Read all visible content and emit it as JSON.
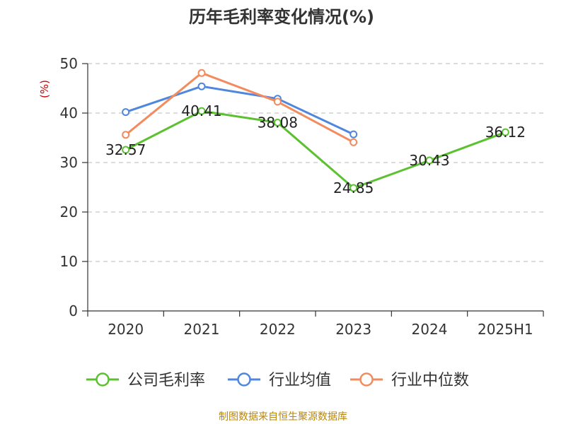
{
  "colors": {
    "company": "#5cc131",
    "industry_avg": "#4f86de",
    "industry_median": "#f28c5e",
    "unit": "#cc0000",
    "source": "#b8860b"
  },
  "chart_data": {
    "type": "line",
    "title": "历年毛利率变化情况(%)",
    "ylabel": "(%)",
    "xlabel": "",
    "categories": [
      "2020",
      "2021",
      "2022",
      "2023",
      "2024",
      "2025H1"
    ],
    "ylim": [
      0,
      50
    ],
    "yticks": [
      0,
      10,
      20,
      30,
      40,
      50
    ],
    "grid": true,
    "legend_position": "bottom",
    "series": [
      {
        "name": "公司毛利率",
        "color_key": "company",
        "values": [
          32.57,
          40.41,
          38.08,
          24.85,
          30.43,
          36.12
        ],
        "labels": [
          "32.57",
          "40.41",
          "38.08",
          "24.85",
          "30.43",
          "36.12"
        ]
      },
      {
        "name": "行业均值",
        "color_key": "industry_avg",
        "values": [
          40.2,
          45.4,
          42.9,
          35.7,
          null,
          null
        ]
      },
      {
        "name": "行业中位数",
        "color_key": "industry_median",
        "values": [
          35.6,
          48.1,
          42.3,
          34.1,
          null,
          null
        ]
      }
    ]
  },
  "source_text": "制图数据来自恒生聚源数据库"
}
